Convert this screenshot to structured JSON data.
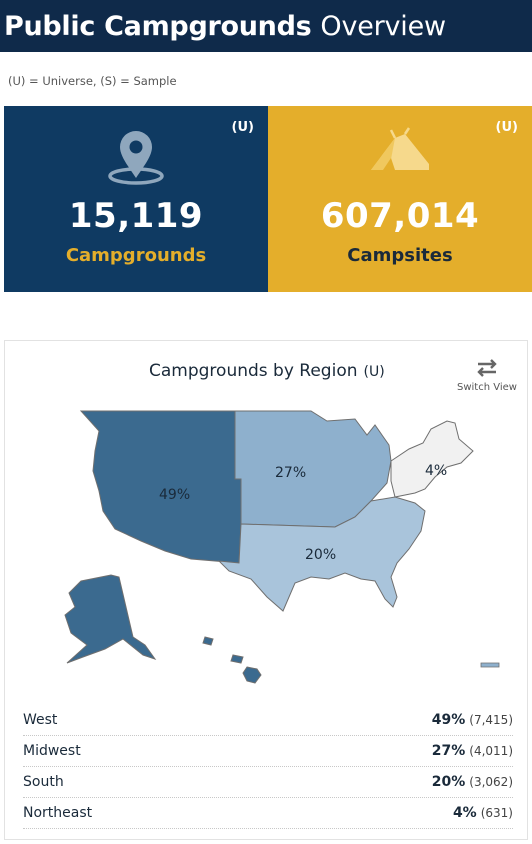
{
  "header": {
    "title_bold": "Public Campgrounds",
    "title_light": "Overview"
  },
  "legend_note": "(U) = Universe, (S) = Sample",
  "kpis": [
    {
      "value": "15,119",
      "label": "Campgrounds",
      "badge": "(U)",
      "icon": "map-pin-icon",
      "bg": "#0f3a62",
      "label_color": "#e4ae2b"
    },
    {
      "value": "607,014",
      "label": "Campsites",
      "badge": "(U)",
      "icon": "tent-icon",
      "bg": "#e4ae2b",
      "label_color": "#1a2a3a"
    }
  ],
  "region_card": {
    "title": "Campgrounds by Region",
    "badge": "(U)",
    "switch_label": "Switch View",
    "map_labels": {
      "west": "49%",
      "midwest": "27%",
      "south": "20%",
      "northeast": "4%"
    },
    "colors": {
      "west": "#3b6a8f",
      "midwest": "#8eb0cd",
      "south": "#a9c4db",
      "northeast": "#f1f1f1"
    },
    "rows": [
      {
        "region": "West",
        "pct": "49%",
        "count": "(7,415)"
      },
      {
        "region": "Midwest",
        "pct": "27%",
        "count": "(4,011)"
      },
      {
        "region": "South",
        "pct": "20%",
        "count": "(3,062)"
      },
      {
        "region": "Northeast",
        "pct": "4%",
        "count": "(631)"
      }
    ]
  }
}
